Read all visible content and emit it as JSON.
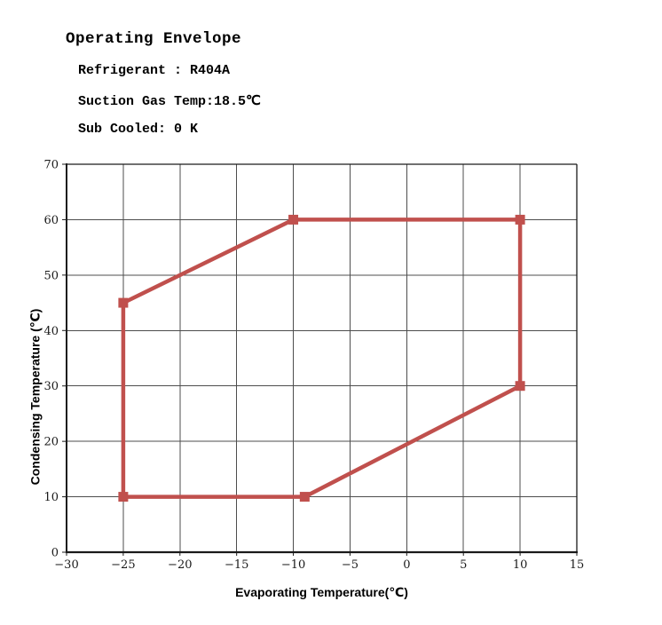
{
  "header": {
    "title": "Operating Envelope",
    "lines": [
      "Refrigerant : R404A",
      "Suction Gas Temp:18.5℃",
      "Sub Cooled: 0 K"
    ]
  },
  "chart_data": {
    "type": "line",
    "title": "Operating Envelope",
    "xlabel": "Evaporating Temperature(℃)",
    "ylabel": "Condensing Temperature (℃)",
    "xlim": [
      -30,
      15
    ],
    "ylim": [
      0,
      70
    ],
    "x_ticks": [
      -30,
      -25,
      -20,
      -15,
      -10,
      -5,
      0,
      5,
      10,
      15
    ],
    "y_ticks": [
      0,
      10,
      20,
      30,
      40,
      50,
      60,
      70
    ],
    "grid": true,
    "legend_position": "none",
    "colors": {
      "envelope": "#C0504D",
      "gridline": "#4d4d4d",
      "axis": "#1a1a1a",
      "tick_label": "#1a1a1a"
    },
    "series": [
      {
        "name": "operating-envelope",
        "color": "#C0504D",
        "marker": "square",
        "closed": true,
        "points": [
          [
            -25,
            10
          ],
          [
            -25,
            45
          ],
          [
            -10,
            60
          ],
          [
            10,
            60
          ],
          [
            10,
            30
          ],
          [
            -9,
            10
          ]
        ]
      }
    ]
  }
}
